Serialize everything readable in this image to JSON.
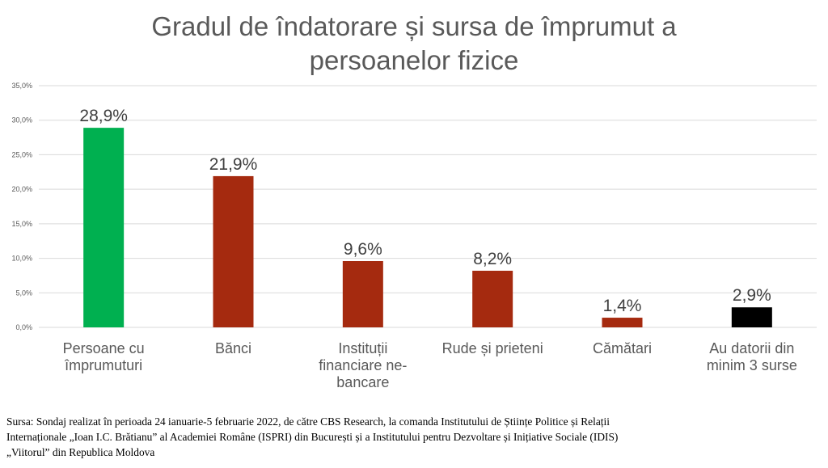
{
  "title": {
    "line1": "Gradul de îndatorare și sursa de împrumut a",
    "line2": "persoanelor fizice"
  },
  "chart_data": {
    "type": "bar",
    "title": "Gradul de îndatorare și sursa de împrumut a persoanelor fizice",
    "categories": [
      [
        "Persoane cu",
        "împrumuturi"
      ],
      [
        "Bănci"
      ],
      [
        "Instituții",
        "financiare ne-",
        "bancare"
      ],
      [
        "Rude și prieteni"
      ],
      [
        "Cămătari"
      ],
      [
        "Au datorii din",
        "minim 3 surse"
      ]
    ],
    "values": [
      28.9,
      21.9,
      9.6,
      8.2,
      1.4,
      2.9
    ],
    "value_labels": [
      "28,9%",
      "21,9%",
      "9,6%",
      "8,2%",
      "1,4%",
      "2,9%"
    ],
    "bar_colors": [
      "#00b050",
      "#a52a0f",
      "#a52a0f",
      "#a52a0f",
      "#a52a0f",
      "#000000"
    ],
    "ylim": [
      0,
      35
    ],
    "yticks": [
      {
        "value": 0,
        "label": "0,0%"
      },
      {
        "value": 5,
        "label": "5,0%"
      },
      {
        "value": 10,
        "label": "10,0%"
      },
      {
        "value": 15,
        "label": "15,0%"
      },
      {
        "value": 20,
        "label": "20,0%"
      },
      {
        "value": 25,
        "label": "25,0%"
      },
      {
        "value": 30,
        "label": "30,0%"
      },
      {
        "value": 35,
        "label": "35,0%"
      }
    ],
    "grid": true,
    "gridline_color": "#d9d9d9"
  },
  "source": {
    "line1": "Sursa: Sondaj realizat în perioada 24 ianuarie-5 februarie 2022, de către CBS Research, la comanda Institutului de Științe Politice și Relații",
    "line2": "Internaționale „Ioan I.C. Brătianu” al Academiei Române (ISPRI) din București și a Institutului pentru Dezvoltare și Inițiative Sociale (IDIS)",
    "line3": "„Viitorul” din Republica Moldova"
  }
}
